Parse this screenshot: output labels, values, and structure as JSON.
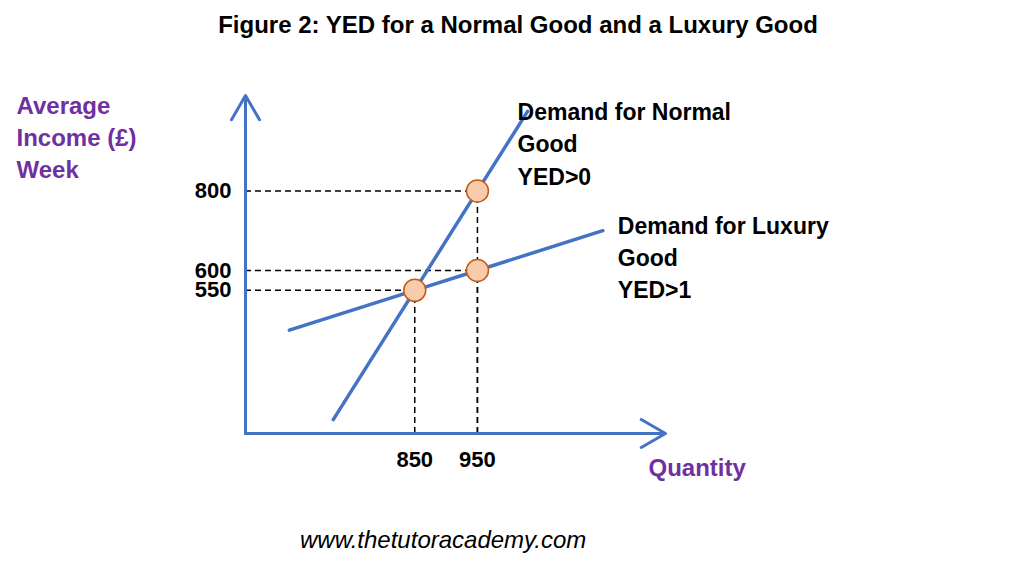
{
  "chart_data": {
    "type": "line",
    "title": "Figure 2: YED for a Normal Good and a Luxury Good",
    "x_label": "Quantity",
    "y_label": "Average Income (£) Week",
    "caption": "www.thetutoracademy.com",
    "xlim": [
      580,
      1250
    ],
    "ylim": [
      190,
      1040
    ],
    "xticks": [
      850,
      950
    ],
    "yticks": [
      550,
      600,
      800
    ],
    "grid": false,
    "series": [
      {
        "name": "Demand for Normal Good",
        "annotation": "YED>0",
        "color": "#4472c4",
        "x": [
          720,
          850,
          950,
          1030
        ],
        "values": [
          225,
          550,
          800,
          1000
        ]
      },
      {
        "name": "Demand for Luxury Good",
        "annotation": "YED>1",
        "color": "#4472c4",
        "x": [
          650,
          850,
          950,
          1150
        ],
        "values": [
          450,
          550,
          600,
          700
        ]
      }
    ],
    "points": {
      "x": [
        850,
        950,
        950
      ],
      "y": [
        550,
        800,
        600
      ],
      "color": "#f8cbad"
    }
  }
}
